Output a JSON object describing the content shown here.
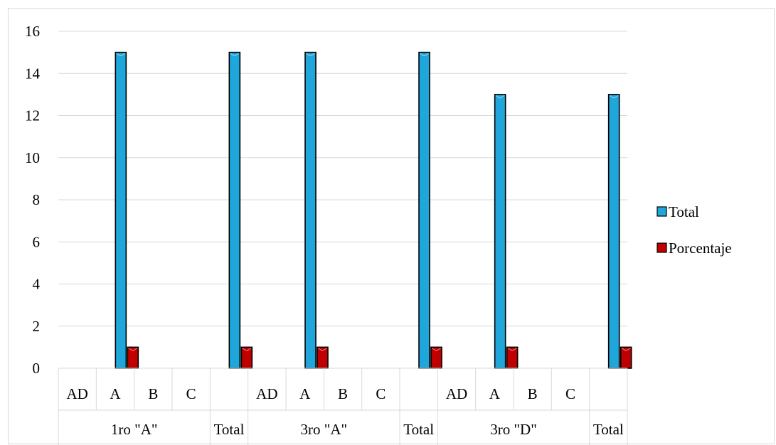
{
  "chart_data": {
    "type": "bar",
    "groups": [
      {
        "label": "1ro \"A\"",
        "categories": [
          "AD",
          "A",
          "B",
          "C"
        ]
      },
      {
        "label": "Total",
        "categories": [
          ""
        ]
      },
      {
        "label": "3ro \"A\"",
        "categories": [
          "AD",
          "A",
          "B",
          "C"
        ]
      },
      {
        "label": "Total",
        "categories": [
          ""
        ]
      },
      {
        "label": "3ro \"D\"",
        "categories": [
          "AD",
          "A",
          "B",
          "C"
        ]
      },
      {
        "label": "Total",
        "categories": [
          ""
        ]
      }
    ],
    "series": [
      {
        "name": "Total",
        "color": "#1fa7dc",
        "values": [
          0,
          15,
          0,
          0,
          15,
          0,
          15,
          0,
          0,
          15,
          0,
          13,
          0,
          0,
          13
        ]
      },
      {
        "name": "Porcentaje",
        "color": "#c00000",
        "values": [
          0,
          1,
          0,
          0,
          1,
          0,
          1,
          0,
          0,
          1,
          0,
          1,
          0,
          0,
          1
        ]
      }
    ],
    "ylim": [
      0,
      16
    ],
    "yticks": [
      "0",
      "2",
      "4",
      "6",
      "8",
      "10",
      "12",
      "14",
      "16"
    ],
    "grid": true,
    "legend_position": "right"
  }
}
